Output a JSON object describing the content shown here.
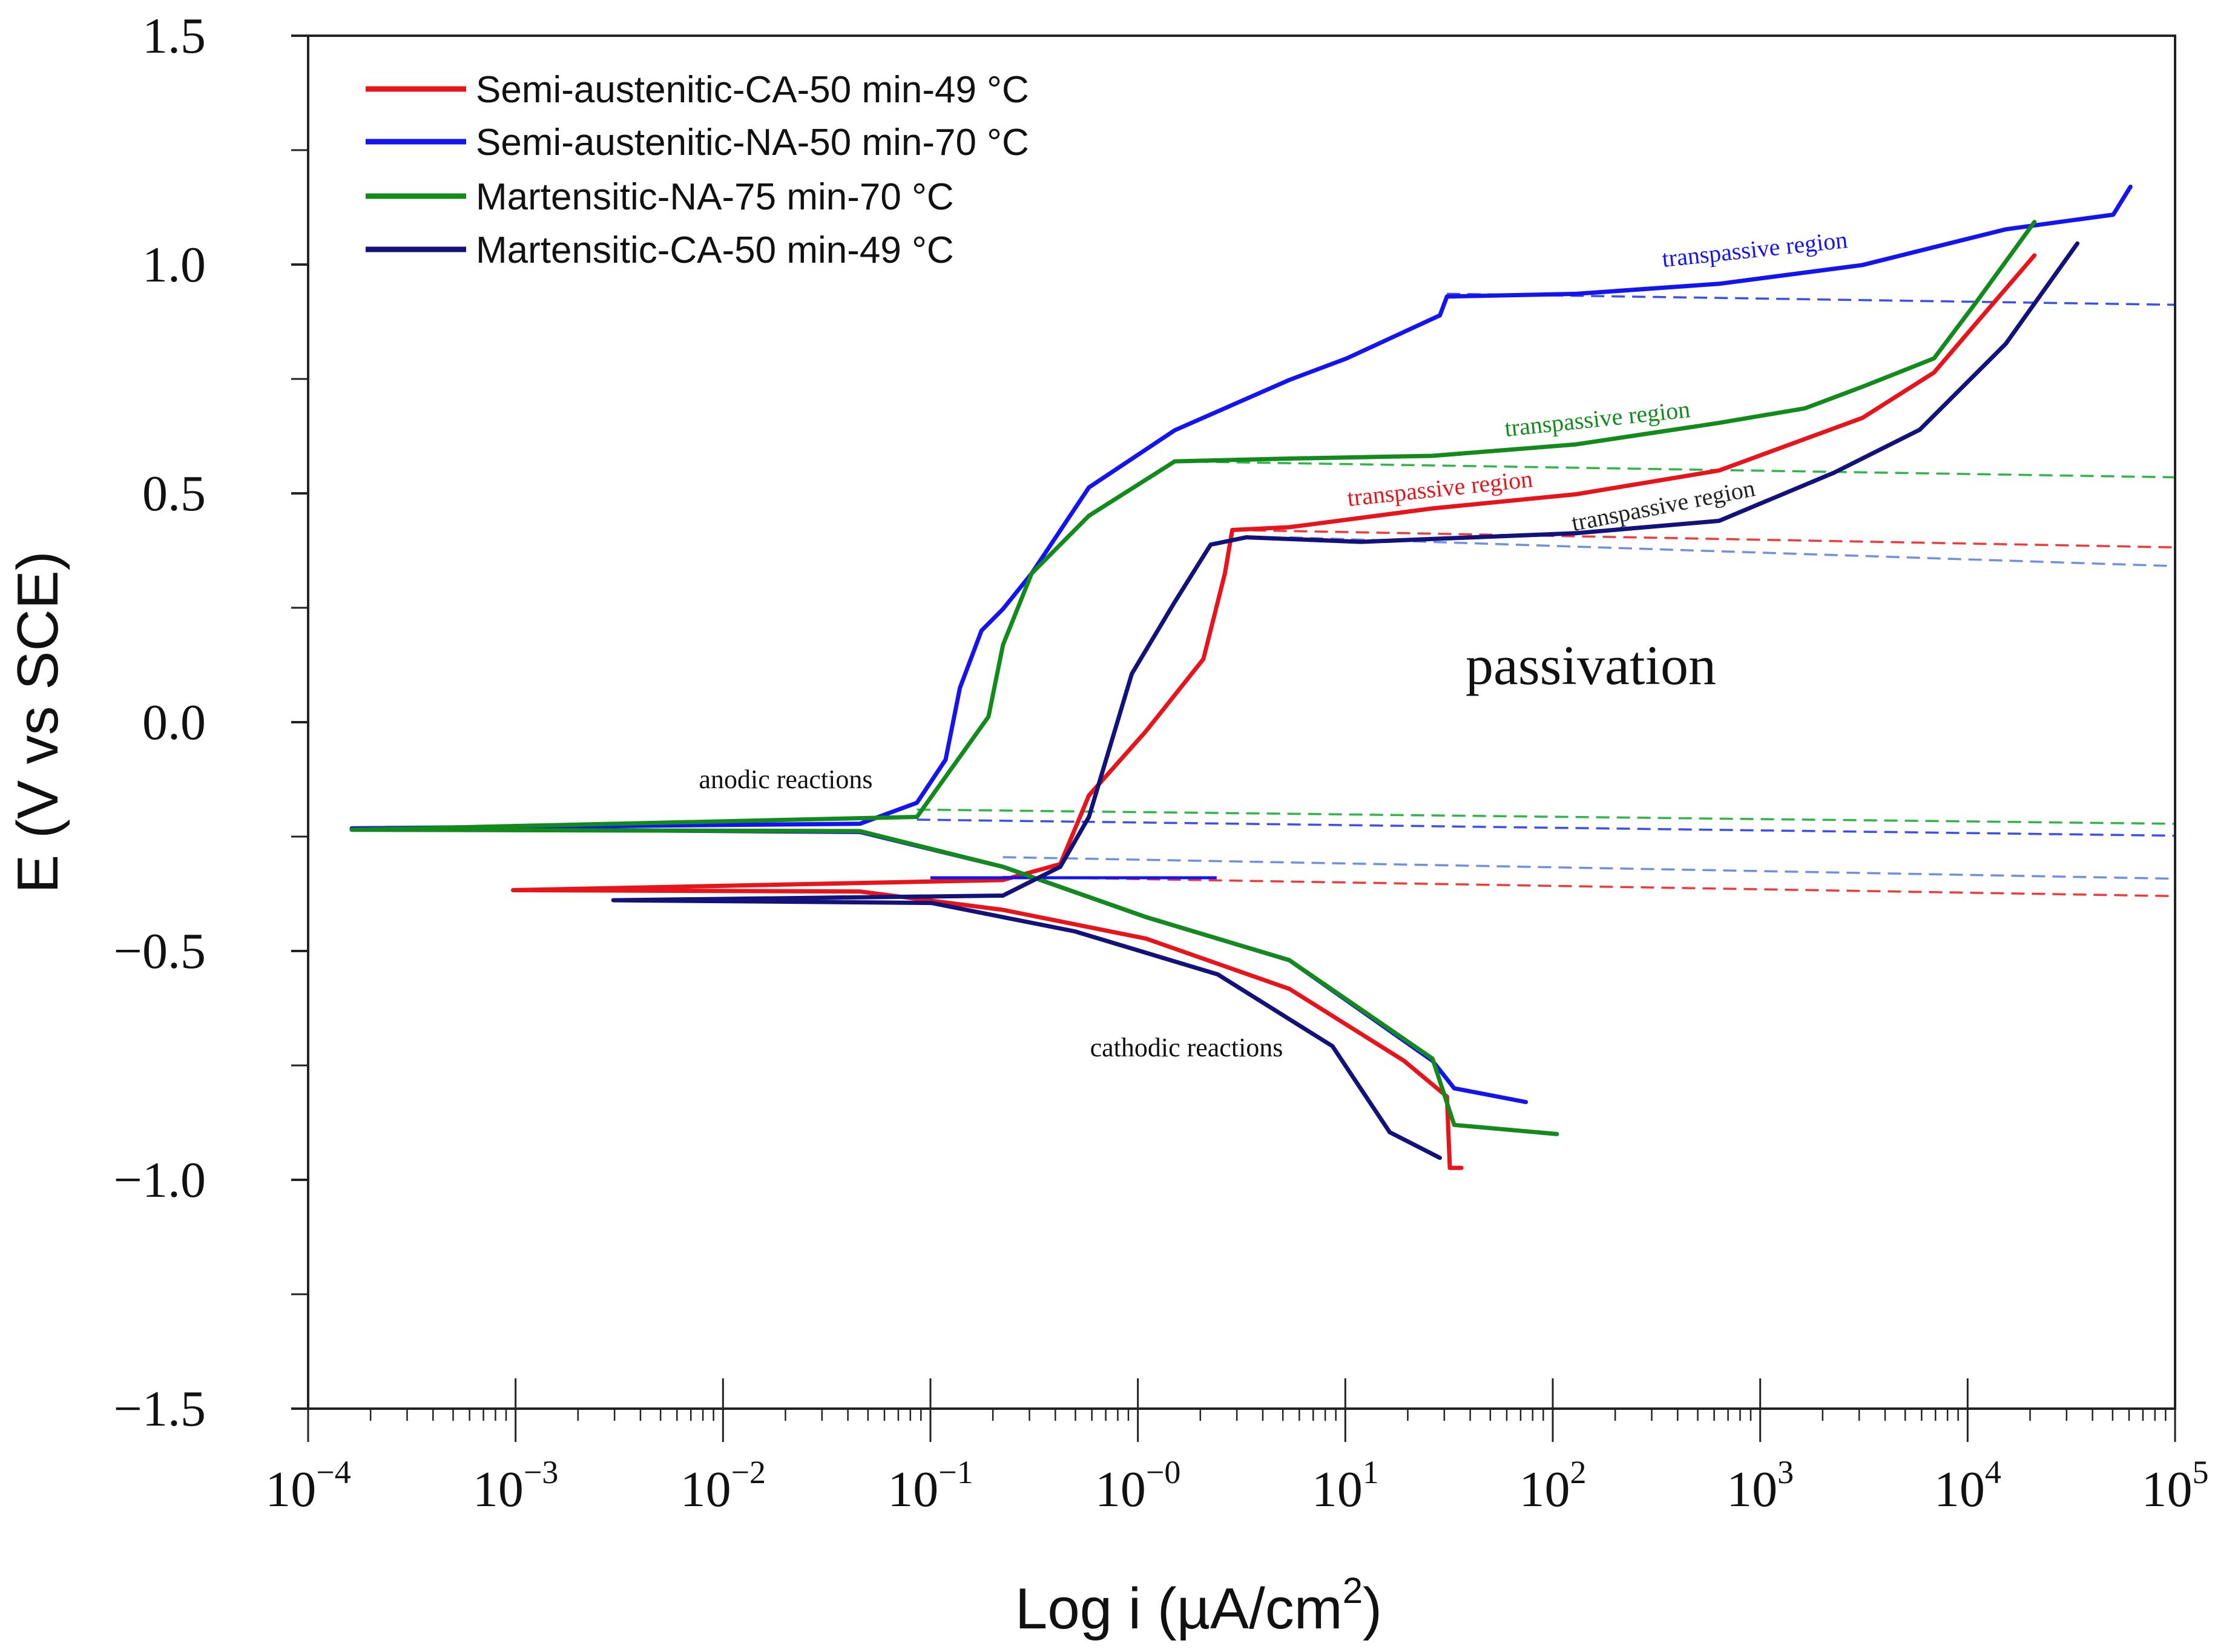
{
  "chart_data": {
    "type": "line",
    "title": "",
    "xlabel": "Log i (µA/cm",
    "xlabel_sup": "2",
    "xlabel_end": ")",
    "ylabel": "E (V vs SCE)",
    "xscale": "log",
    "xlim_log10": [
      -4,
      5
    ],
    "ylim": [
      -1.5,
      1.5
    ],
    "grid": false,
    "legend_position": "top-left",
    "x_ticks": [
      {
        "log": -4,
        "base": "10",
        "exp": "−4"
      },
      {
        "log": -3,
        "base": "10",
        "exp": "−3"
      },
      {
        "log": -2,
        "base": "10",
        "exp": "−2"
      },
      {
        "log": -1,
        "base": "10",
        "exp": "−1"
      },
      {
        "log": 0,
        "base": "10",
        "exp": "−0"
      },
      {
        "log": 1,
        "base": "10",
        "exp": "1"
      },
      {
        "log": 2,
        "base": "10",
        "exp": "2"
      },
      {
        "log": 3,
        "base": "10",
        "exp": "3"
      },
      {
        "log": 4,
        "base": "10",
        "exp": "4"
      },
      {
        "log": 5,
        "base": "10",
        "exp": "5"
      }
    ],
    "y_ticks": [
      {
        "value": 1.5,
        "label": "1.5"
      },
      {
        "value": 1.0,
        "label": "1.0"
      },
      {
        "value": 0.5,
        "label": "0.5"
      },
      {
        "value": 0.0,
        "label": "0.0"
      },
      {
        "value": -0.5,
        "label": "−0.5"
      },
      {
        "value": -1.0,
        "label": "−1.0"
      },
      {
        "value": -1.5,
        "label": "−1.5"
      }
    ],
    "series": [
      {
        "name": "Semi-austenitic-CA-50 min-49 °C",
        "color": "#e8141b",
        "points_log_i_E": [
          [
            1.56,
            -0.974
          ],
          [
            1.504,
            -0.974
          ],
          [
            1.49,
            -0.818
          ],
          [
            1.283,
            -0.74
          ],
          [
            0.731,
            -0.583
          ],
          [
            0.04,
            -0.473
          ],
          [
            -0.651,
            -0.41
          ],
          [
            -1.341,
            -0.37
          ],
          [
            -3.012,
            -0.367
          ],
          [
            -0.651,
            -0.345
          ],
          [
            -0.374,
            -0.31
          ],
          [
            -0.236,
            -0.16
          ],
          [
            0.04,
            -0.019
          ],
          [
            0.316,
            0.138
          ],
          [
            0.42,
            0.326
          ],
          [
            0.455,
            0.42
          ],
          [
            0.731,
            0.426
          ],
          [
            1.42,
            0.467
          ],
          [
            2.112,
            0.498
          ],
          [
            2.802,
            0.55
          ],
          [
            3.493,
            0.665
          ],
          [
            3.838,
            0.764
          ],
          [
            4.045,
            0.874
          ],
          [
            4.322,
            1.02
          ]
        ]
      },
      {
        "name": "Semi-austenitic-NA-50 min-70 °C",
        "color": "#1414f0",
        "points_log_i_E": [
          [
            1.87,
            -0.83
          ],
          [
            1.525,
            -0.8
          ],
          [
            1.42,
            -0.74
          ],
          [
            0.73,
            -0.52
          ],
          [
            0.04,
            -0.426
          ],
          [
            -0.65,
            -0.316
          ],
          [
            -1.34,
            -0.24
          ],
          [
            -3.79,
            -0.232
          ],
          [
            -1.34,
            -0.222
          ],
          [
            -1.065,
            -0.176
          ],
          [
            -0.927,
            -0.082
          ],
          [
            -0.858,
            0.075
          ],
          [
            -0.754,
            0.2
          ],
          [
            -0.651,
            0.247
          ],
          [
            -0.512,
            0.325
          ],
          [
            -0.236,
            0.513
          ],
          [
            0.178,
            0.638
          ],
          [
            0.731,
            0.748
          ],
          [
            1.007,
            0.795
          ],
          [
            1.456,
            0.889
          ],
          [
            1.49,
            0.93
          ],
          [
            2.112,
            0.936
          ],
          [
            2.802,
            0.958
          ],
          [
            3.493,
            0.999
          ],
          [
            4.184,
            1.077
          ],
          [
            4.702,
            1.109
          ],
          [
            4.785,
            1.17
          ]
        ],
        "extra_segment_log_i_E": [
          [
            -1.0,
            -0.34
          ],
          [
            0.38,
            -0.34
          ]
        ]
      },
      {
        "name": "Martensitic-NA-75 min-70 °C",
        "color": "#138a1c",
        "points_log_i_E": [
          [
            2.02,
            -0.9
          ],
          [
            1.525,
            -0.88
          ],
          [
            1.42,
            -0.735
          ],
          [
            0.73,
            -0.52
          ],
          [
            0.04,
            -0.426
          ],
          [
            -0.65,
            -0.316
          ],
          [
            -1.34,
            -0.238
          ],
          [
            -3.79,
            -0.235
          ],
          [
            -1.065,
            -0.207
          ],
          [
            -0.72,
            0.012
          ],
          [
            -0.65,
            0.169
          ],
          [
            -0.512,
            0.325
          ],
          [
            -0.236,
            0.451
          ],
          [
            0.178,
            0.57
          ],
          [
            0.731,
            0.576
          ],
          [
            1.42,
            0.582
          ],
          [
            2.112,
            0.607
          ],
          [
            2.802,
            0.654
          ],
          [
            3.217,
            0.686
          ],
          [
            3.493,
            0.733
          ],
          [
            3.838,
            0.795
          ],
          [
            4.045,
            0.92
          ],
          [
            4.322,
            1.093
          ]
        ]
      },
      {
        "name": "Martensitic-CA-50 min-49 °C",
        "color": "#12127a",
        "points_log_i_E": [
          [
            1.456,
            -0.952
          ],
          [
            1.214,
            -0.896
          ],
          [
            0.938,
            -0.708
          ],
          [
            0.385,
            -0.551
          ],
          [
            -0.305,
            -0.457
          ],
          [
            -0.996,
            -0.395
          ],
          [
            -2.529,
            -0.389
          ],
          [
            -0.651,
            -0.379
          ],
          [
            -0.374,
            -0.316
          ],
          [
            -0.236,
            -0.207
          ],
          [
            -0.029,
            0.106
          ],
          [
            0.178,
            0.263
          ],
          [
            0.351,
            0.388
          ],
          [
            0.523,
            0.404
          ],
          [
            1.076,
            0.394
          ],
          [
            2.112,
            0.413
          ],
          [
            2.802,
            0.44
          ],
          [
            3.355,
            0.545
          ],
          [
            3.769,
            0.639
          ],
          [
            4.184,
            0.827
          ],
          [
            4.529,
            1.046
          ]
        ]
      }
    ],
    "extrapolation_lines": [
      {
        "color": "#3b4ef0",
        "points_log_i_E": [
          [
            1.49,
            0.936
          ],
          [
            5,
            0.912
          ]
        ]
      },
      {
        "color": "#2fb54a",
        "points_log_i_E": [
          [
            0.178,
            0.57
          ],
          [
            5,
            0.535
          ]
        ]
      },
      {
        "color": "#f03a3a",
        "points_log_i_E": [
          [
            0.455,
            0.42
          ],
          [
            5,
            0.382
          ]
        ]
      },
      {
        "color": "#6f8fe0",
        "points_log_i_E": [
          [
            0.731,
            0.404
          ],
          [
            5,
            0.341
          ]
        ]
      },
      {
        "color": "#2fb54a",
        "points_log_i_E": [
          [
            -1.065,
            -0.191
          ],
          [
            5,
            -0.222
          ]
        ]
      },
      {
        "color": "#3b4ef0",
        "points_log_i_E": [
          [
            -1.065,
            -0.213
          ],
          [
            5,
            -0.248
          ]
        ]
      },
      {
        "color": "#6f8fe0",
        "points_log_i_E": [
          [
            -0.651,
            -0.295
          ],
          [
            5,
            -0.342
          ]
        ]
      },
      {
        "color": "#f03a3a",
        "points_log_i_E": [
          [
            -0.651,
            -0.338
          ],
          [
            5,
            -0.38
          ]
        ]
      }
    ],
    "annotations": {
      "transpassive_blue": "transpassive region",
      "transpassive_green": "transpassive region",
      "transpassive_red": "transpassive region",
      "transpassive_navy": "transpassive region",
      "passivation": "passivation",
      "anodic": "anodic reactions",
      "cathodic": "cathodic reactions"
    }
  }
}
